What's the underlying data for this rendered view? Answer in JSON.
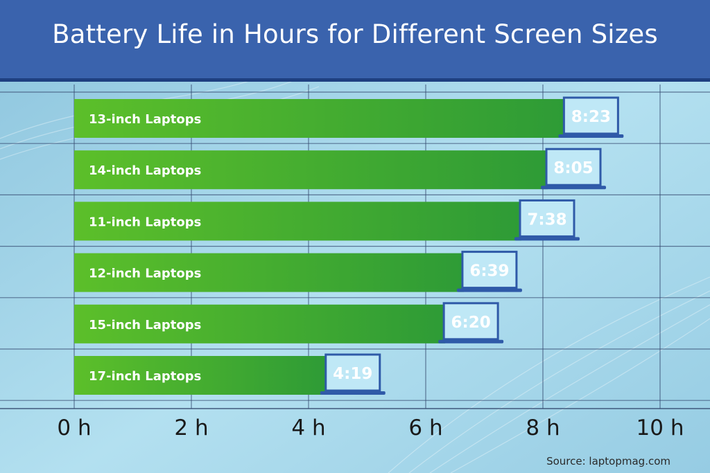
{
  "title": "Battery Life in Hours for Different Screen Sizes",
  "source": "Source: laptopmag.com",
  "colors": {
    "header": "#3a63ad",
    "bar_start": "#5cbf2a",
    "bar_end": "#2e9b36",
    "grid": "#34496f",
    "laptop_screen": "#bfe8f6",
    "laptop_frame": "#2f5aa8"
  },
  "icon": "laptop-icon",
  "chart_data": {
    "type": "bar",
    "orientation": "horizontal",
    "title": "Battery Life in Hours for Different Screen Sizes",
    "xlabel": "",
    "ylabel": "",
    "xlim": [
      0,
      10
    ],
    "x_ticks": [
      0,
      2,
      4,
      6,
      8,
      10
    ],
    "x_tick_labels": [
      "0 h",
      "2 h",
      "4 h",
      "6 h",
      "8 h",
      "10 h"
    ],
    "grid": true,
    "categories": [
      "13-inch Laptops",
      "14-inch Laptops",
      "11-inch Laptops",
      "12-inch Laptops",
      "15-inch Laptops",
      "17-inch Laptops"
    ],
    "values": [
      8.383,
      8.083,
      7.633,
      6.65,
      6.333,
      4.317
    ],
    "value_labels": [
      "8:23",
      "8:05",
      "7:38",
      "6:39",
      "6:20",
      "4:19"
    ]
  }
}
